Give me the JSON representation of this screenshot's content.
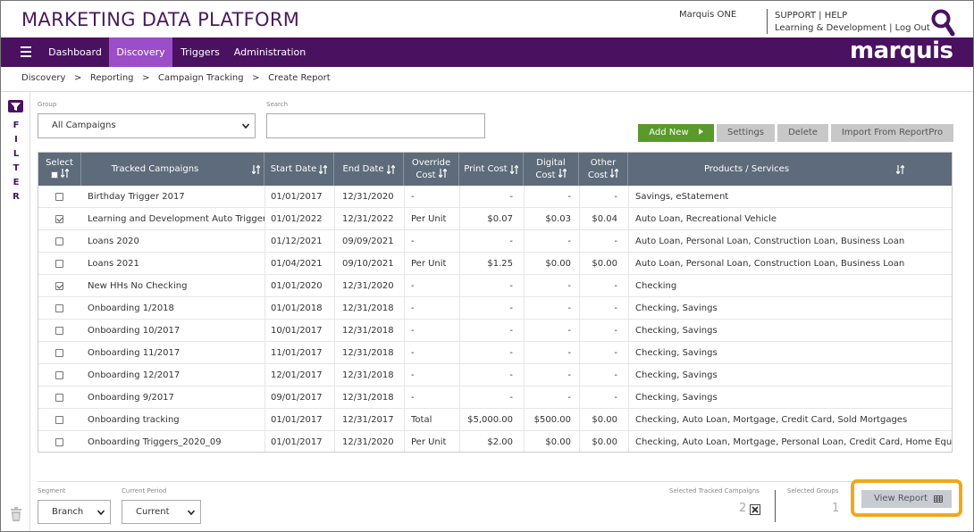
{
  "header": {
    "app_title": "MARKETING DATA PLATFORM",
    "user_name": "Marquis ONE",
    "support": "SUPPORT",
    "help": "HELP",
    "learning": "Learning & Development",
    "logout": "Log Out",
    "separator": "|"
  },
  "nav": {
    "items": [
      "Dashboard",
      "Discovery",
      "Triggers",
      "Administration"
    ],
    "active": "Discovery",
    "brand": "marquis"
  },
  "breadcrumb": {
    "items": [
      "Discovery",
      "Reporting",
      "Campaign Tracking",
      "Create Report"
    ],
    "separator": ">"
  },
  "filter": {
    "letters": [
      "F",
      "I",
      "L",
      "T",
      "E",
      "R"
    ]
  },
  "controls": {
    "group_label": "Group",
    "group_value": "All Campaigns",
    "search_label": "Search",
    "search_value": "",
    "add_new": "Add New",
    "settings": "Settings",
    "delete": "Delete",
    "import": "Import From ReportPro"
  },
  "table": {
    "headers": {
      "select": "Select",
      "campaign": "Tracked Campaigns",
      "start": "Start Date",
      "end": "End Date",
      "override_1": "Override",
      "override_2": "Cost",
      "print": "Print Cost",
      "digital_1": "Digital",
      "digital_2": "Cost",
      "other_1": "Other",
      "other_2": "Cost",
      "products": "Products / Services"
    },
    "rows": [
      {
        "checked": false,
        "campaign": "Birthday Trigger 2017",
        "start": "01/01/2017",
        "end": "12/31/2020",
        "override": "-",
        "print": "-",
        "digital": "-",
        "other": "-",
        "products": "Savings, eStatement"
      },
      {
        "checked": true,
        "campaign": "Learning and Development Auto Triggers",
        "start": "01/01/2022",
        "end": "12/31/2022",
        "override": "Per Unit",
        "print": "$0.07",
        "digital": "$0.03",
        "other": "$0.04",
        "products": "Auto Loan, Recreational Vehicle"
      },
      {
        "checked": false,
        "campaign": "Loans 2020",
        "start": "01/12/2021",
        "end": "09/09/2021",
        "override": "-",
        "print": "-",
        "digital": "-",
        "other": "-",
        "products": "Auto Loan, Personal Loan, Construction Loan, Business Loan"
      },
      {
        "checked": false,
        "campaign": "Loans 2021",
        "start": "01/04/2021",
        "end": "09/10/2021",
        "override": "Per Unit",
        "print": "$1.25",
        "digital": "$0.00",
        "other": "$0.00",
        "products": "Auto Loan, Personal Loan, Construction Loan, Business Loan"
      },
      {
        "checked": true,
        "campaign": "New HHs No Checking",
        "start": "01/01/2020",
        "end": "12/31/2020",
        "override": "-",
        "print": "-",
        "digital": "-",
        "other": "-",
        "products": "Checking"
      },
      {
        "checked": false,
        "campaign": "Onboarding 1/2018",
        "start": "01/01/2018",
        "end": "12/31/2018",
        "override": "-",
        "print": "-",
        "digital": "-",
        "other": "-",
        "products": "Checking, Savings"
      },
      {
        "checked": false,
        "campaign": "Onboarding 10/2017",
        "start": "10/01/2017",
        "end": "12/31/2018",
        "override": "-",
        "print": "-",
        "digital": "-",
        "other": "-",
        "products": "Checking, Savings"
      },
      {
        "checked": false,
        "campaign": "Onboarding 11/2017",
        "start": "11/01/2017",
        "end": "12/31/2018",
        "override": "-",
        "print": "-",
        "digital": "-",
        "other": "-",
        "products": "Checking, Savings"
      },
      {
        "checked": false,
        "campaign": "Onboarding 12/2017",
        "start": "12/01/2017",
        "end": "12/31/2018",
        "override": "-",
        "print": "-",
        "digital": "-",
        "other": "-",
        "products": "Checking, Savings"
      },
      {
        "checked": false,
        "campaign": "Onboarding 9/2017",
        "start": "09/01/2017",
        "end": "12/31/2018",
        "override": "-",
        "print": "-",
        "digital": "-",
        "other": "-",
        "products": "Checking, Savings"
      },
      {
        "checked": false,
        "campaign": "Onboarding tracking",
        "start": "01/01/2017",
        "end": "12/31/2017",
        "override": "Total",
        "print": "$5,000.00",
        "digital": "$500.00",
        "other": "$0.00",
        "products": "Checking, Auto Loan, Mortgage, Credit Card, Sold Mortgages"
      },
      {
        "checked": false,
        "campaign": "Onboarding Triggers_2020_09",
        "start": "01/01/2017",
        "end": "12/31/2020",
        "override": "Per Unit",
        "print": "$2.00",
        "digital": "$0.00",
        "other": "$0.00",
        "products": "Checking, Auto Loan, Mortgage, Personal Loan, Credit Card, Home Equity"
      }
    ]
  },
  "footer": {
    "segment_label": "Segment",
    "segment_value": "Branch",
    "period_label": "Current Period",
    "period_value": "Current",
    "selected_campaigns_label": "Selected Tracked Campaigns",
    "selected_campaigns_count": "2",
    "selected_groups_label": "Selected Groups",
    "selected_groups_count": "1",
    "view_report": "View Report"
  },
  "colors": {
    "brand_purple": "#4a1161",
    "nav_active": "#9b4ec7",
    "table_header": "#5d6b7a",
    "add_green": "#5a9a2a",
    "highlight_orange": "#f0a81c"
  }
}
